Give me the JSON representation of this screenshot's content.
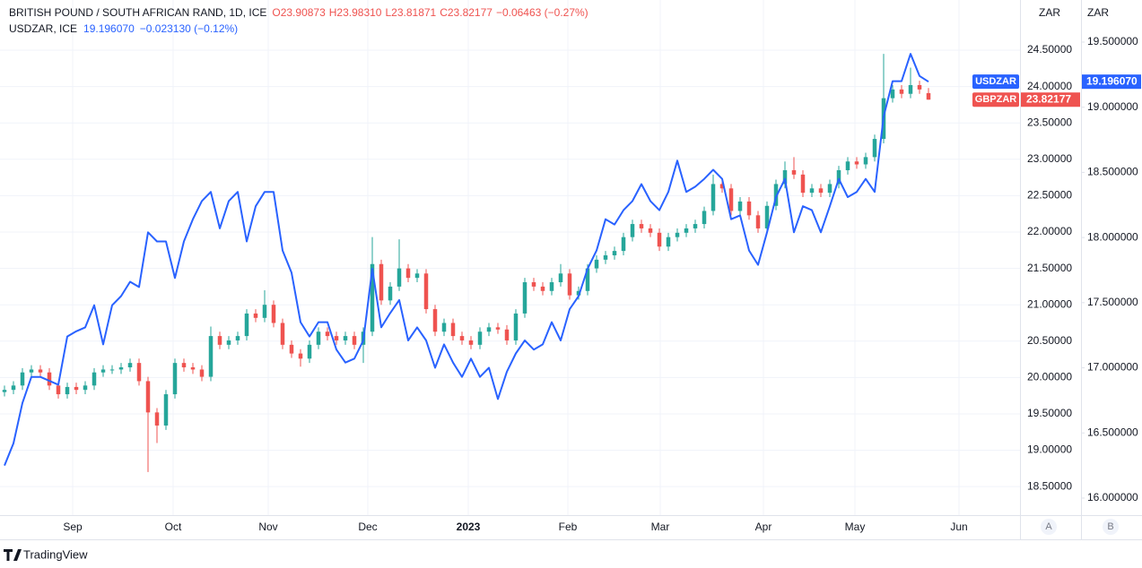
{
  "chart_data": {
    "type": "candlestick",
    "title": "BRITISH POUND / SOUTH AFRICAN RAND, 1D, ICE",
    "quote": [
      "O23.90873",
      "H23.98310",
      "L23.81871",
      "C23.82177",
      "−0.06463 (−0.27%)"
    ],
    "second_title": "USDZAR, ICE",
    "second_quote": [
      "19.196070",
      "−0.023130 (−0.12%)"
    ],
    "axis_unit": "ZAR",
    "axis_names": [
      "A",
      "B"
    ],
    "brand": "TradingView",
    "x": [
      0,
      2,
      4,
      6,
      8,
      10,
      12,
      14,
      16,
      18,
      20,
      22,
      24,
      26,
      28,
      30,
      32,
      34,
      36,
      38,
      40,
      42,
      44,
      46,
      48,
      50,
      52,
      54,
      56,
      58,
      60,
      62,
      64,
      66,
      68,
      70,
      72,
      74,
      76,
      78,
      80,
      82,
      84,
      86,
      88,
      90,
      92,
      94,
      96,
      98,
      100,
      102,
      104,
      106,
      108,
      110,
      112,
      114,
      116,
      118,
      120,
      122,
      124,
      126,
      128,
      130,
      132,
      134,
      136,
      138,
      140,
      142,
      144,
      146,
      148,
      150,
      152,
      154,
      156,
      158,
      160,
      162,
      164,
      166,
      168,
      170,
      172,
      174,
      176,
      178,
      180,
      182,
      184,
      186,
      188,
      190,
      192,
      194,
      196,
      198,
      200,
      202,
      204,
      206
    ],
    "xlim": [
      -1,
      226.4
    ],
    "xticks": [
      {
        "value": 15.2,
        "label": "Sep"
      },
      {
        "value": 37.6,
        "label": "Oct"
      },
      {
        "value": 58.8,
        "label": "Nov"
      },
      {
        "value": 81,
        "label": "Dec"
      },
      {
        "value": 103.4,
        "label": "2023"
      },
      {
        "value": 125.6,
        "label": "Feb"
      },
      {
        "value": 146.2,
        "label": "Mar"
      },
      {
        "value": 169.2,
        "label": "Apr"
      },
      {
        "value": 189.6,
        "label": "May"
      },
      {
        "value": 212.8,
        "label": "Jun"
      }
    ],
    "ylim": [
      18.108,
      25.19
    ],
    "yticks": [
      {
        "value": 18.5,
        "label": "18.50000"
      },
      {
        "value": 19,
        "label": "19.00000"
      },
      {
        "value": 19.5,
        "label": "19.50000"
      },
      {
        "value": 20,
        "label": "20.00000"
      },
      {
        "value": 20.5,
        "label": "20.50000"
      },
      {
        "value": 21,
        "label": "21.00000"
      },
      {
        "value": 21.5,
        "label": "21.50000"
      },
      {
        "value": 22,
        "label": "22.00000"
      },
      {
        "value": 22.5,
        "label": "22.50000"
      },
      {
        "value": 23,
        "label": "23.00000"
      },
      {
        "value": 23.5,
        "label": "23.50000"
      },
      {
        "value": 24,
        "label": "24.00000"
      },
      {
        "value": 24.5,
        "label": "24.50000"
      }
    ],
    "y2lim": [
      15.869,
      19.823
    ],
    "y2ticks": [
      {
        "value": 16,
        "label": "16.000000"
      },
      {
        "value": 16.5,
        "label": "16.500000"
      },
      {
        "value": 17,
        "label": "17.000000"
      },
      {
        "value": 17.5,
        "label": "17.500000"
      },
      {
        "value": 18,
        "label": "18.000000"
      },
      {
        "value": 18.5,
        "label": "18.500000"
      },
      {
        "value": 19,
        "label": "19.000000"
      },
      {
        "value": 19.5,
        "label": "19.500000"
      }
    ],
    "grid": true,
    "series": [
      {
        "name": "GBPZAR",
        "up_color": "#26a69a",
        "down_color": "#ef5350",
        "last_label": "23.82177",
        "open": [
          19.8,
          19.83,
          19.89,
          20.07,
          20.11,
          20.07,
          19.89,
          19.77,
          19.87,
          19.83,
          19.89,
          20.07,
          20.11,
          20.11,
          20.14,
          20.2,
          19.95,
          19.52,
          19.34,
          19.77,
          20.2,
          20.14,
          20.11,
          20.01,
          20.57,
          20.45,
          20.51,
          20.57,
          20.88,
          20.82,
          21.0,
          20.75,
          20.45,
          20.33,
          20.26,
          20.45,
          20.63,
          20.57,
          20.51,
          20.57,
          20.45,
          20.63,
          21.56,
          21.06,
          21.25,
          21.5,
          21.37,
          21.43,
          20.94,
          20.63,
          20.75,
          20.57,
          20.51,
          20.45,
          20.63,
          20.69,
          20.66,
          20.51,
          20.88,
          21.31,
          21.25,
          21.19,
          21.31,
          21.43,
          21.13,
          21.19,
          21.5,
          21.62,
          21.68,
          21.74,
          21.93,
          22.11,
          22.05,
          21.99,
          21.8,
          21.93,
          21.99,
          22.05,
          22.11,
          22.29,
          22.66,
          22.6,
          22.29,
          22.42,
          22.23,
          22.05,
          22.36,
          22.66,
          22.85,
          22.79,
          22.54,
          22.6,
          22.54,
          22.66,
          22.85,
          22.97,
          22.93,
          23.03,
          23.28,
          23.84,
          23.96,
          23.9,
          24.02,
          23.91
        ],
        "high": [
          19.89,
          19.95,
          20.13,
          20.17,
          20.17,
          20.13,
          19.95,
          19.93,
          19.93,
          19.95,
          20.13,
          20.17,
          20.17,
          20.2,
          20.26,
          20.26,
          20.01,
          19.58,
          19.83,
          20.26,
          20.26,
          20.2,
          20.17,
          20.7,
          20.63,
          20.57,
          20.63,
          20.94,
          20.94,
          21.2,
          21.06,
          20.81,
          20.51,
          20.39,
          20.51,
          20.69,
          20.69,
          20.63,
          20.63,
          20.63,
          20.69,
          21.93,
          21.62,
          21.31,
          21.9,
          21.56,
          21.49,
          21.49,
          21.0,
          20.81,
          20.81,
          20.63,
          20.57,
          20.69,
          20.75,
          20.75,
          20.72,
          20.94,
          21.37,
          21.37,
          21.31,
          21.37,
          21.56,
          21.49,
          21.25,
          21.56,
          21.68,
          21.74,
          21.8,
          21.99,
          22.17,
          22.17,
          22.11,
          22.05,
          21.99,
          22.05,
          22.11,
          22.17,
          22.35,
          22.79,
          22.72,
          22.66,
          22.48,
          22.48,
          22.29,
          22.42,
          22.72,
          22.97,
          23.03,
          22.85,
          22.66,
          22.66,
          22.72,
          22.91,
          23.03,
          23.03,
          23.09,
          23.34,
          24.45,
          24.02,
          24.02,
          24.26,
          24.08,
          23.98
        ],
        "low": [
          19.74,
          19.77,
          19.83,
          20.01,
          20.01,
          19.83,
          19.71,
          19.71,
          19.77,
          19.77,
          19.83,
          20.01,
          20.05,
          20.05,
          20.08,
          19.89,
          18.7,
          19.1,
          19.28,
          19.71,
          20.08,
          20.05,
          19.95,
          19.95,
          20.39,
          20.39,
          20.45,
          20.51,
          20.76,
          20.76,
          20.69,
          20.39,
          20.27,
          20.15,
          20.2,
          20.39,
          20.51,
          20.45,
          20.45,
          20.39,
          20.2,
          20.57,
          21.0,
          21.0,
          21.19,
          21.31,
          21.31,
          20.88,
          20.57,
          20.57,
          20.51,
          20.45,
          20.39,
          20.39,
          20.57,
          20.6,
          20.45,
          20.45,
          20.82,
          21.19,
          21.13,
          21.13,
          21.25,
          21.07,
          21.07,
          21.13,
          21.44,
          21.56,
          21.62,
          21.68,
          21.87,
          21.99,
          21.93,
          21.74,
          21.74,
          21.87,
          21.93,
          21.99,
          22.05,
          22.23,
          22.54,
          22.23,
          22.23,
          22.17,
          21.99,
          21.99,
          22.3,
          22.6,
          22.73,
          22.48,
          22.48,
          22.48,
          22.48,
          22.6,
          22.79,
          22.87,
          22.87,
          22.97,
          23.22,
          23.78,
          23.84,
          23.84,
          23.9,
          23.82
        ],
        "close": [
          19.83,
          19.89,
          20.07,
          20.11,
          20.07,
          19.89,
          19.77,
          19.87,
          19.83,
          19.89,
          20.07,
          20.11,
          20.11,
          20.14,
          20.2,
          19.95,
          19.52,
          19.34,
          19.77,
          20.2,
          20.14,
          20.11,
          20.01,
          20.57,
          20.45,
          20.51,
          20.57,
          20.88,
          20.82,
          21.0,
          20.75,
          20.45,
          20.33,
          20.26,
          20.45,
          20.63,
          20.57,
          20.51,
          20.57,
          20.45,
          20.63,
          21.56,
          21.06,
          21.25,
          21.5,
          21.37,
          21.43,
          20.94,
          20.63,
          20.75,
          20.57,
          20.51,
          20.45,
          20.63,
          20.69,
          20.66,
          20.51,
          20.88,
          21.31,
          21.25,
          21.19,
          21.31,
          21.43,
          21.13,
          21.19,
          21.5,
          21.62,
          21.68,
          21.74,
          21.93,
          22.11,
          22.05,
          21.99,
          21.8,
          21.93,
          21.99,
          22.05,
          22.11,
          22.29,
          22.66,
          22.6,
          22.29,
          22.42,
          22.23,
          22.05,
          22.36,
          22.66,
          22.85,
          22.79,
          22.54,
          22.6,
          22.54,
          22.66,
          22.85,
          22.97,
          22.93,
          23.03,
          23.28,
          23.84,
          23.96,
          23.9,
          24.02,
          23.96,
          23.82
        ]
      },
      {
        "name": "USDZAR",
        "color": "#2962ff",
        "axis": "y2",
        "last_label": "19.196070",
        "values": [
          16.25,
          16.42,
          16.73,
          16.93,
          16.93,
          16.9,
          16.87,
          17.24,
          17.28,
          17.31,
          17.48,
          17.18,
          17.48,
          17.55,
          17.66,
          17.62,
          18.04,
          17.97,
          17.97,
          17.69,
          17.97,
          18.14,
          18.28,
          18.35,
          18.07,
          18.28,
          18.35,
          17.97,
          18.24,
          18.35,
          18.35,
          17.9,
          17.73,
          17.35,
          17.24,
          17.35,
          17.35,
          17.14,
          17.04,
          17.07,
          17.21,
          17.76,
          17.31,
          17.42,
          17.52,
          17.21,
          17.31,
          17.21,
          17.0,
          17.18,
          17.04,
          16.93,
          17.07,
          16.93,
          17.0,
          16.76,
          16.97,
          17.11,
          17.21,
          17.14,
          17.18,
          17.35,
          17.21,
          17.45,
          17.55,
          17.76,
          17.9,
          18.14,
          18.1,
          18.21,
          18.28,
          18.41,
          18.28,
          18.21,
          18.35,
          18.59,
          18.35,
          18.39,
          18.45,
          18.52,
          18.45,
          18.14,
          18.17,
          17.9,
          17.79,
          18.04,
          18.31,
          18.45,
          18.04,
          18.24,
          18.21,
          18.04,
          18.24,
          18.45,
          18.31,
          18.35,
          18.45,
          18.35,
          18.93,
          19.2,
          19.2,
          19.41,
          19.24,
          19.196
        ]
      }
    ]
  }
}
